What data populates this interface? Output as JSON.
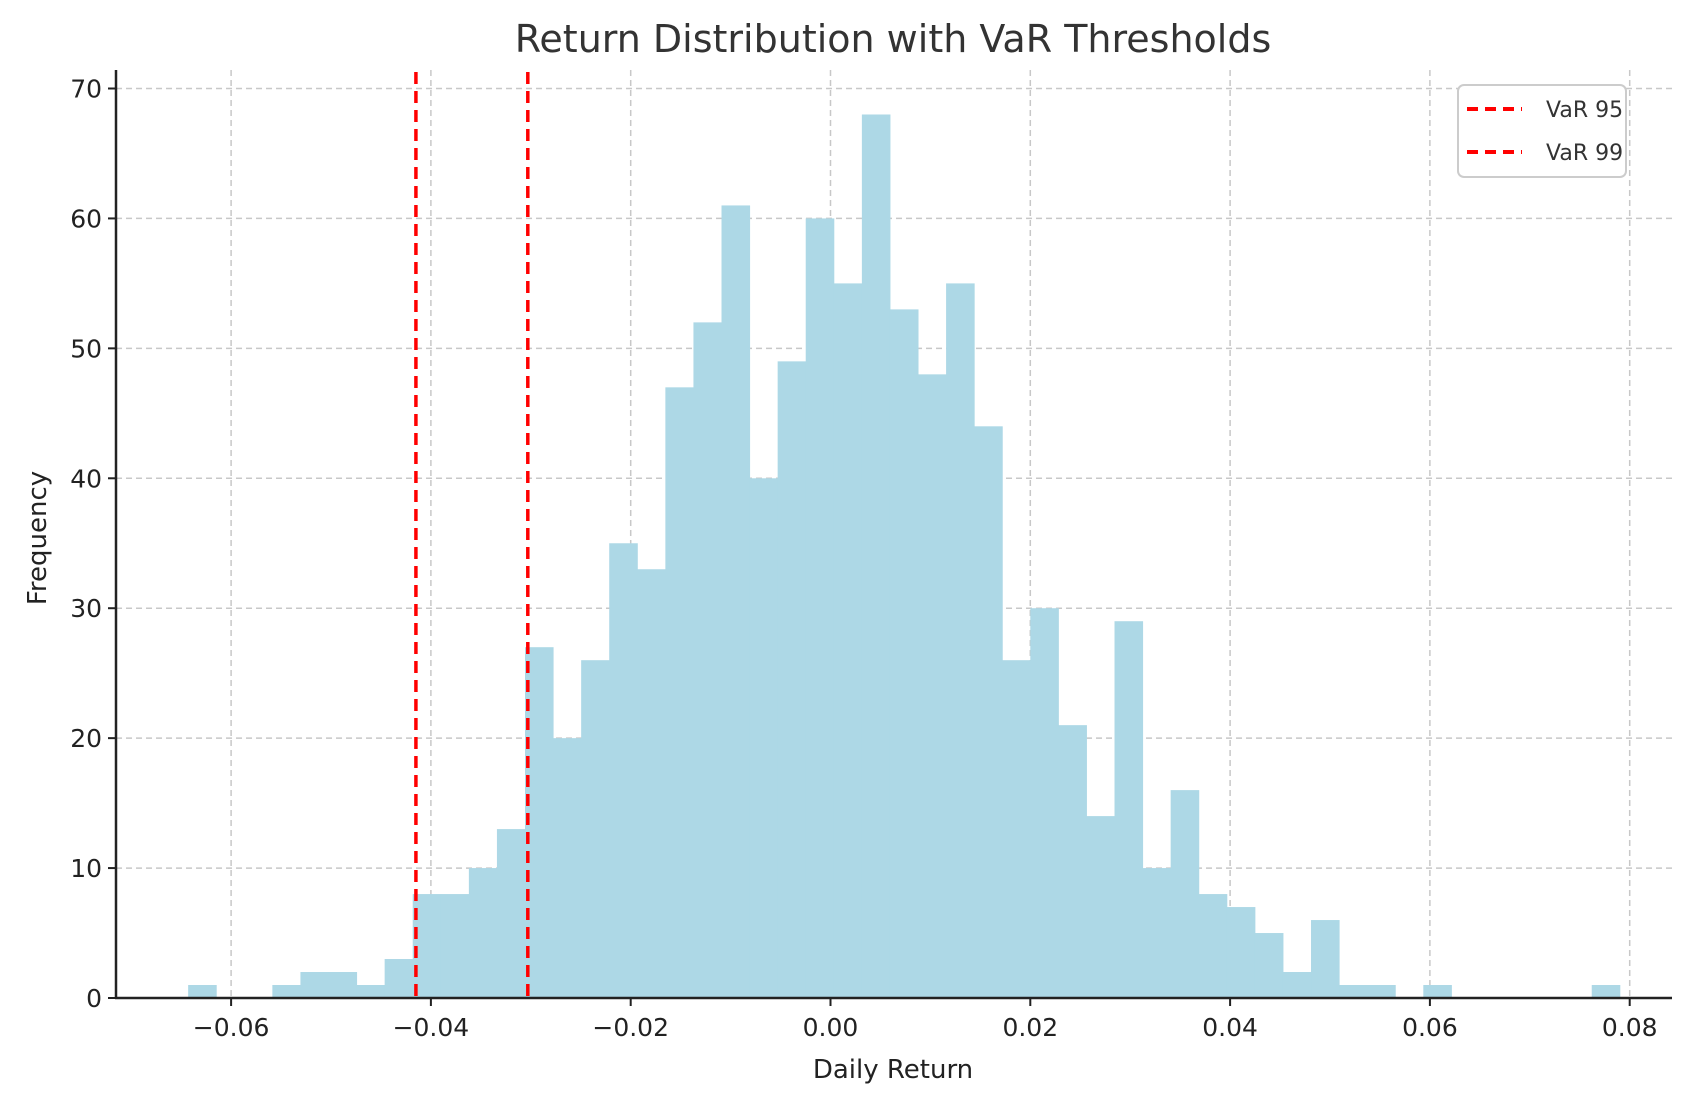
{
  "chart_data": {
    "type": "bar",
    "title": "Return Distribution with VaR Thresholds",
    "xlabel": "Daily Return",
    "ylabel": "Frequency",
    "xlim": [
      -0.0715,
      0.0845
    ],
    "ylim": [
      0,
      72
    ],
    "grid": true,
    "legend_position": "upper right",
    "x_ticks": [
      "−0.06",
      "−0.04",
      "−0.02",
      "0.00",
      "0.02",
      "0.04",
      "0.06",
      "0.08"
    ],
    "x_tick_values": [
      -0.06,
      -0.04,
      -0.02,
      0.0,
      0.02,
      0.04,
      0.06,
      0.08
    ],
    "y_ticks": [
      "0",
      "10",
      "20",
      "30",
      "40",
      "50",
      "60",
      "70"
    ],
    "y_tick_values": [
      0,
      10,
      20,
      30,
      40,
      50,
      60,
      70
    ],
    "bin_start": -0.0643,
    "bin_width": 0.00281,
    "values": [
      1,
      0,
      0,
      1,
      2,
      2,
      1,
      3,
      8,
      8,
      10,
      13,
      27,
      20,
      26,
      35,
      33,
      47,
      52,
      61,
      40,
      49,
      60,
      55,
      68,
      53,
      48,
      55,
      44,
      26,
      30,
      21,
      14,
      29,
      10,
      16,
      8,
      7,
      5,
      2,
      6,
      1,
      1,
      0,
      1,
      0,
      0,
      0,
      0,
      0,
      1
    ],
    "bar_color": "#add8e6",
    "vlines": [
      {
        "name": "VaR 95",
        "x": -0.0415,
        "color": "#ff0000",
        "style": "dashed"
      },
      {
        "name": "VaR 99",
        "x": -0.0303,
        "color": "#ff0000",
        "style": "dashed"
      }
    ],
    "legend": [
      "VaR 95",
      "VaR 99"
    ]
  }
}
